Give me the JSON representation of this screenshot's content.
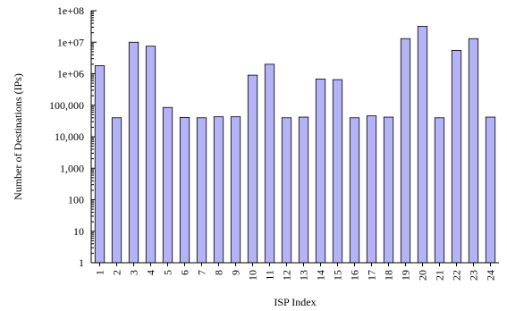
{
  "chart_data": {
    "type": "bar",
    "title": "",
    "xlabel": "ISP Index",
    "ylabel": "Number of Destinations (IPs)",
    "y_scale": "log",
    "ylim": [
      1,
      100000000
    ],
    "grid": false,
    "legend": "none",
    "y_ticks": [
      {
        "value": 1,
        "label": "1"
      },
      {
        "value": 10,
        "label": "10"
      },
      {
        "value": 100,
        "label": "100"
      },
      {
        "value": 1000,
        "label": "1,000"
      },
      {
        "value": 10000,
        "label": "10,000"
      },
      {
        "value": 100000,
        "label": "100,000"
      },
      {
        "value": 1000000,
        "label": "1e+06"
      },
      {
        "value": 10000000,
        "label": "1e+07"
      },
      {
        "value": 100000000,
        "label": "1e+08"
      }
    ],
    "categories": [
      "1",
      "2",
      "3",
      "4",
      "5",
      "6",
      "7",
      "8",
      "9",
      "10",
      "11",
      "12",
      "13",
      "14",
      "15",
      "16",
      "17",
      "18",
      "19",
      "20",
      "21",
      "22",
      "23",
      "24"
    ],
    "values": [
      1800000,
      40000,
      10000000,
      7500000,
      85000,
      41000,
      40000,
      43000,
      43000,
      900000,
      2000000,
      40000,
      42000,
      680000,
      650000,
      40000,
      46000,
      42000,
      13000000,
      32000000,
      40000,
      5500000,
      13000000,
      42000
    ],
    "colors": {
      "bar_fill": "#b3b3f5",
      "bar_stroke": "#000000",
      "axis": "#000000"
    }
  }
}
